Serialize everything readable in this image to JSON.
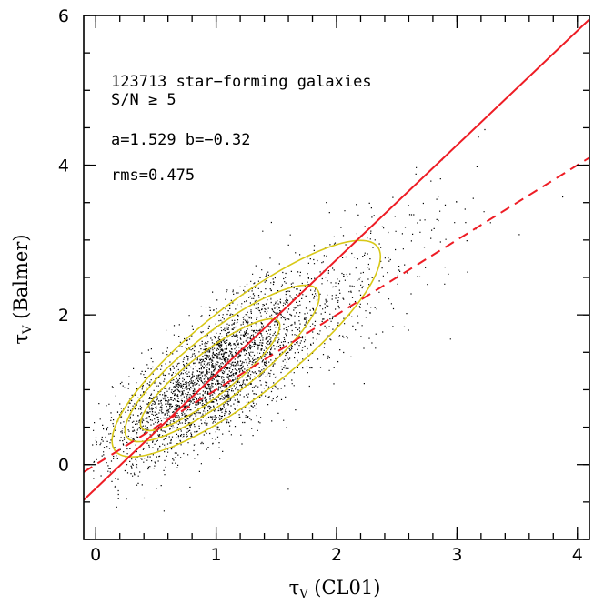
{
  "chart_data": {
    "type": "scatter",
    "title": "",
    "xlabel": "τV (CL01)",
    "xlabel_symbol": "τ",
    "xlabel_sub": "V",
    "xlabel_rest": " (CL01)",
    "ylabel": "τV (Balmer)",
    "ylabel_symbol": "τ",
    "ylabel_sub": "V",
    "ylabel_rest": " (Balmer)",
    "xlim": [
      -0.1,
      4.1
    ],
    "ylim": [
      -1,
      6
    ],
    "xticks_major": [
      0,
      1,
      2,
      3,
      4
    ],
    "xticks_minor_step": 0.2,
    "yticks_major": [
      0,
      2,
      4,
      6
    ],
    "yticks_minor_step": 0.5,
    "annotations": [
      "123713 star−forming galaxies",
      "S/N ≥ 5",
      "a=1.529 b=−0.32",
      "rms=0.475"
    ],
    "sample": {
      "n_galaxies": 123713,
      "point_color": "#000000",
      "x_center": 0.9,
      "x_spread": 0.45,
      "x_range": [
        -0.05,
        3.95
      ],
      "y_slope": 1.05,
      "y_intercept": 0.15,
      "y_scatter": 0.42
    },
    "fit_line": {
      "label": "best fit",
      "slope": 1.529,
      "intercept": -0.32,
      "style": "solid",
      "color": "#ee1c24"
    },
    "one_to_one_line": {
      "label": "one-to-one",
      "slope": 1.0,
      "intercept": 0.0,
      "style": "dashed",
      "color": "#ee1c24"
    },
    "contours": {
      "color": "#d8c817",
      "levels": [
        {
          "center": [
            1.25,
            1.55
          ],
          "half_length": 1.38,
          "half_width": 0.38
        },
        {
          "center": [
            1.05,
            1.35
          ],
          "half_length": 1.0,
          "half_width": 0.27
        },
        {
          "center": [
            0.95,
            1.2
          ],
          "half_length": 0.72,
          "half_width": 0.18
        }
      ]
    }
  }
}
